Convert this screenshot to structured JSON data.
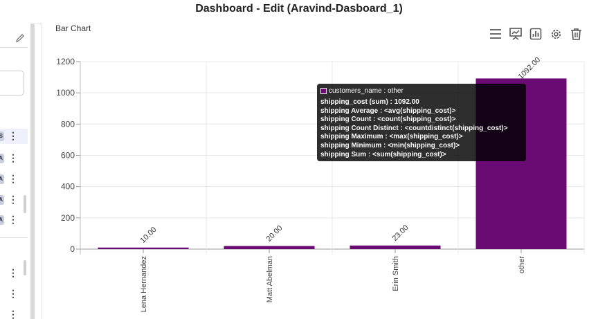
{
  "window": {
    "title": "Dashboard - Edit (Aravind-Dasboard_1)"
  },
  "left_panel": {
    "rows": [
      {
        "badge": "S"
      },
      {
        "badge": "A"
      },
      {
        "badge": "A"
      },
      {
        "badge": "A"
      },
      {
        "badge": "A"
      }
    ]
  },
  "chart_panel": {
    "label": "Bar Chart",
    "toolbar": [
      "menu-icon",
      "presentation-chart-icon",
      "bar-chart-icon",
      "gear-icon",
      "trash-icon"
    ]
  },
  "chart_data": {
    "type": "bar",
    "categories": [
      "Lena Hernandez",
      "Matt Abelman",
      "Erin Smith",
      "other"
    ],
    "values": [
      10.0,
      20.0,
      23.0,
      1092.0
    ],
    "data_labels": [
      "10.00",
      "20.00",
      "23.00",
      "1092.00"
    ],
    "ylim": [
      0,
      1200
    ],
    "yticks": [
      0,
      200,
      400,
      600,
      800,
      1000,
      1200
    ],
    "grid": true,
    "bar_color": "#6a0a73"
  },
  "tooltip": {
    "header": "customers_name : other",
    "lines": [
      "shipping_cost (sum) : 1092.00",
      "shipping Average : <avg(shipping_cost)>",
      "shipping Count : <count(shipping_cost)>",
      "shipping Count Distinct : <countdistinct(shipping_cost)>",
      "shipping Maximum : <max(shipping_cost)>",
      "shipping Minimum : <min(shipping_cost)>",
      "shipping Sum : <sum(shipping_cost)>"
    ]
  }
}
